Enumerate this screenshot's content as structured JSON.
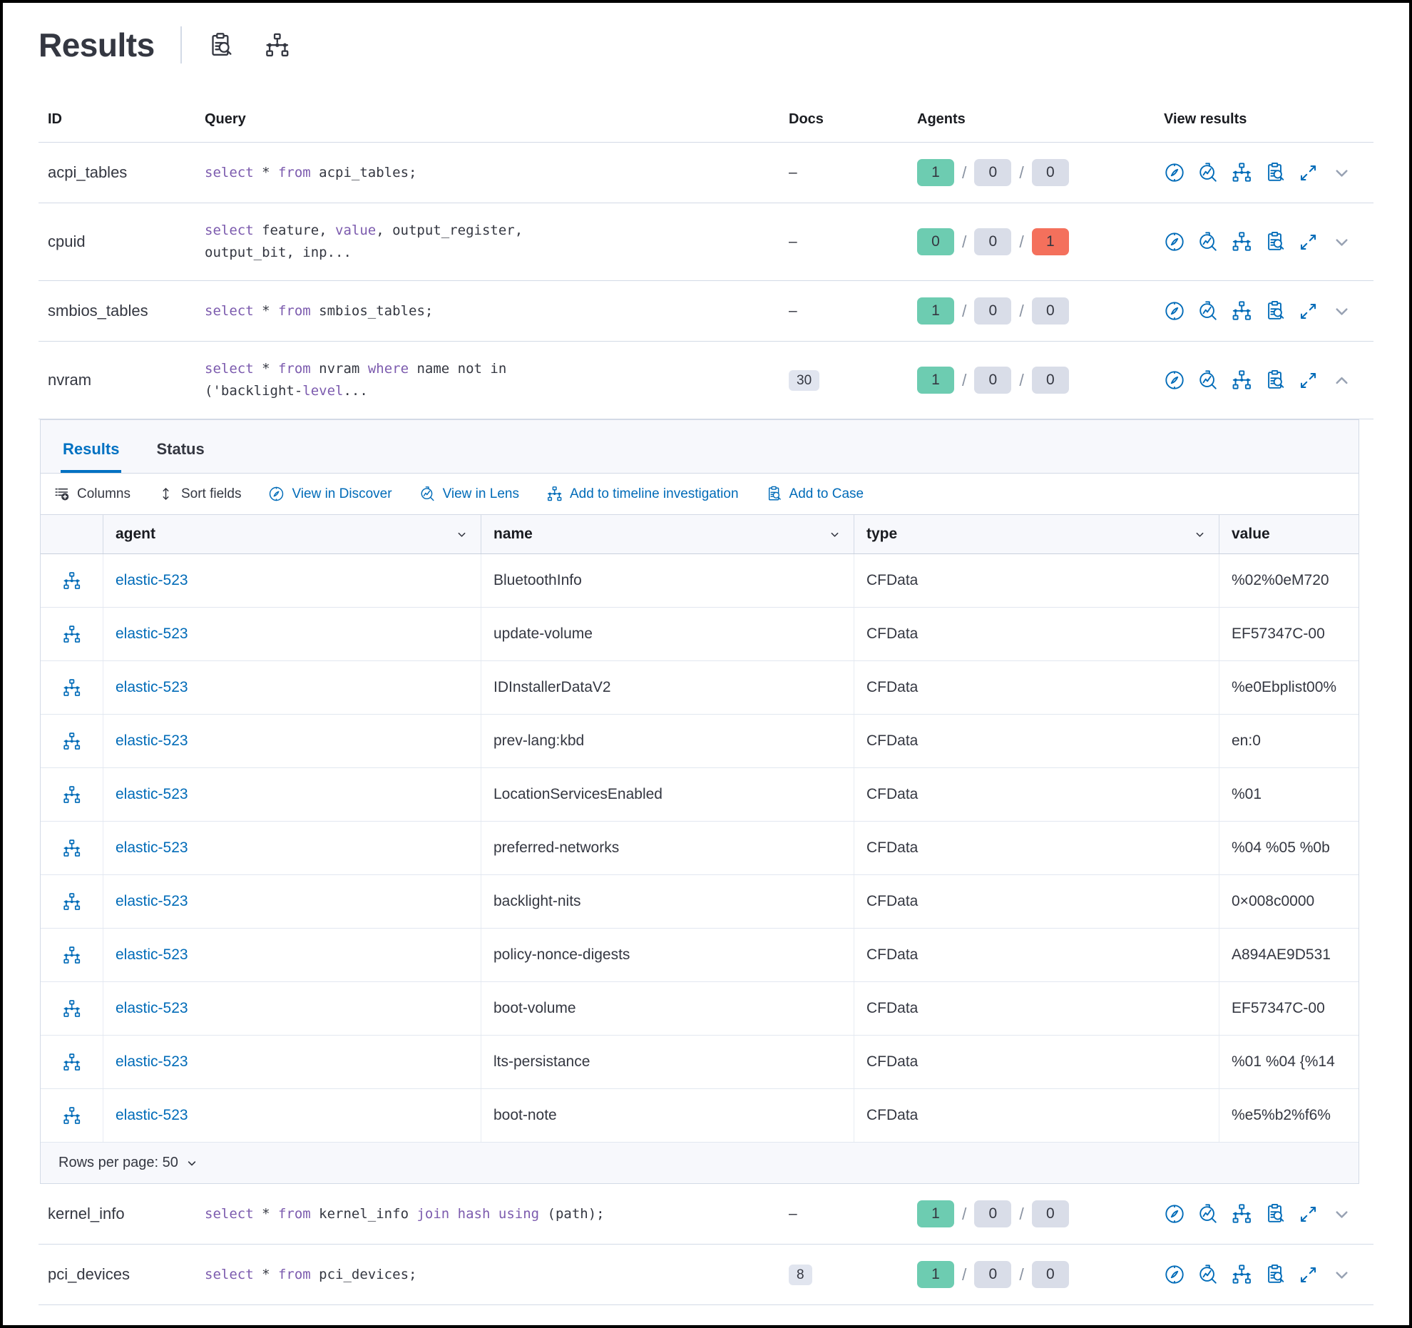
{
  "header": {
    "title": "Results"
  },
  "colors": {
    "accent_blue": "#006BB8",
    "tab_blue": "#0071C2",
    "keyword_purple": "#7C5BAE",
    "badge_green": "#6DCCB1",
    "badge_gray": "#D9DDE8",
    "badge_red": "#F4705C",
    "panel_background": "#F7F8FC",
    "border_gray": "#D3DAE6"
  },
  "table": {
    "columns": [
      "ID",
      "Query",
      "Docs",
      "Agents",
      "View results"
    ],
    "rows": [
      {
        "id": "acpi_tables",
        "query": [
          {
            "t": "select",
            "kw": true
          },
          {
            "t": " * "
          },
          {
            "t": "from",
            "kw": true
          },
          {
            "t": " acpi_tables;"
          }
        ],
        "docs": "-",
        "docs_badge": false,
        "agents": [
          "1",
          "0",
          "0"
        ],
        "agents_error": false,
        "expanded": false
      },
      {
        "id": "cpuid",
        "query": [
          {
            "t": "select",
            "kw": true
          },
          {
            "t": " feature, "
          },
          {
            "t": "value",
            "kw": true
          },
          {
            "t": ", output_register,"
          },
          {
            "br": true
          },
          {
            "t": "output_bit, inp..."
          }
        ],
        "docs": "-",
        "docs_badge": false,
        "agents": [
          "0",
          "0",
          "1"
        ],
        "agents_error": true,
        "expanded": false
      },
      {
        "id": "smbios_tables",
        "query": [
          {
            "t": "select",
            "kw": true
          },
          {
            "t": " * "
          },
          {
            "t": "from",
            "kw": true
          },
          {
            "t": " smbios_tables;"
          }
        ],
        "docs": "-",
        "docs_badge": false,
        "agents": [
          "1",
          "0",
          "0"
        ],
        "agents_error": false,
        "expanded": false
      },
      {
        "id": "nvram",
        "query": [
          {
            "t": "select",
            "kw": true
          },
          {
            "t": " * "
          },
          {
            "t": "from",
            "kw": true
          },
          {
            "t": " nvram "
          },
          {
            "t": "where",
            "kw": true
          },
          {
            "t": " name not in"
          },
          {
            "br": true
          },
          {
            "t": "('backlight-"
          },
          {
            "t": "level",
            "kw": true
          },
          {
            "t": "..."
          }
        ],
        "docs": "30",
        "docs_badge": true,
        "agents": [
          "1",
          "0",
          "0"
        ],
        "agents_error": false,
        "expanded": true
      },
      {
        "id": "kernel_info",
        "query": [
          {
            "t": "select",
            "kw": true
          },
          {
            "t": " * "
          },
          {
            "t": "from",
            "kw": true
          },
          {
            "t": " kernel_info "
          },
          {
            "t": "join",
            "kw": true
          },
          {
            "t": " "
          },
          {
            "t": "hash",
            "kw": true
          },
          {
            "t": " "
          },
          {
            "t": "using",
            "kw": true
          },
          {
            "t": " (path);"
          }
        ],
        "docs": "-",
        "docs_badge": false,
        "agents": [
          "1",
          "0",
          "0"
        ],
        "agents_error": false,
        "expanded": false
      },
      {
        "id": "pci_devices",
        "query": [
          {
            "t": "select",
            "kw": true
          },
          {
            "t": " * "
          },
          {
            "t": "from",
            "kw": true
          },
          {
            "t": " pci_devices;"
          }
        ],
        "docs": "8",
        "docs_badge": true,
        "agents": [
          "1",
          "0",
          "0"
        ],
        "agents_error": false,
        "expanded": false
      }
    ]
  },
  "panel": {
    "attached_to": "nvram",
    "tabs": [
      {
        "label": "Results",
        "active": true
      },
      {
        "label": "Status",
        "active": false
      }
    ],
    "toolbar": [
      {
        "label": "Columns",
        "icon": "columns-icon",
        "primary": false
      },
      {
        "label": "Sort fields",
        "icon": "sort-icon",
        "primary": false
      },
      {
        "label": "View in Discover",
        "icon": "discover-icon",
        "primary": true
      },
      {
        "label": "View in Lens",
        "icon": "lens-icon",
        "primary": true
      },
      {
        "label": "Add to timeline investigation",
        "icon": "timeline-icon",
        "primary": true
      },
      {
        "label": "Add to Case",
        "icon": "case-icon",
        "primary": true
      }
    ],
    "grid": {
      "columns": [
        "agent",
        "name",
        "type",
        "value"
      ],
      "rows": [
        {
          "agent": "elastic-523",
          "name": "BluetoothInfo",
          "type": "CFData",
          "value": "%02%0eM720"
        },
        {
          "agent": "elastic-523",
          "name": "update-volume",
          "type": "CFData",
          "value": "EF57347C-00"
        },
        {
          "agent": "elastic-523",
          "name": "IDInstallerDataV2",
          "type": "CFData",
          "value": "%e0Ebplist00%"
        },
        {
          "agent": "elastic-523",
          "name": "prev-lang:kbd",
          "type": "CFData",
          "value": "en:0"
        },
        {
          "agent": "elastic-523",
          "name": "LocationServicesEnabled",
          "type": "CFData",
          "value": "%01"
        },
        {
          "agent": "elastic-523",
          "name": "preferred-networks",
          "type": "CFData",
          "value": "%04 %05 %0b"
        },
        {
          "agent": "elastic-523",
          "name": "backlight-nits",
          "type": "CFData",
          "value": "0×008c0000"
        },
        {
          "agent": "elastic-523",
          "name": "policy-nonce-digests",
          "type": "CFData",
          "value": "A894AE9D531"
        },
        {
          "agent": "elastic-523",
          "name": "boot-volume",
          "type": "CFData",
          "value": "EF57347C-00"
        },
        {
          "agent": "elastic-523",
          "name": "lts-persistance",
          "type": "CFData",
          "value": "%01 %04 {%14"
        },
        {
          "agent": "elastic-523",
          "name": "boot-note",
          "type": "CFData",
          "value": "%e5%b2%f6%"
        }
      ],
      "rows_per_page_label": "Rows per page: 50"
    }
  }
}
